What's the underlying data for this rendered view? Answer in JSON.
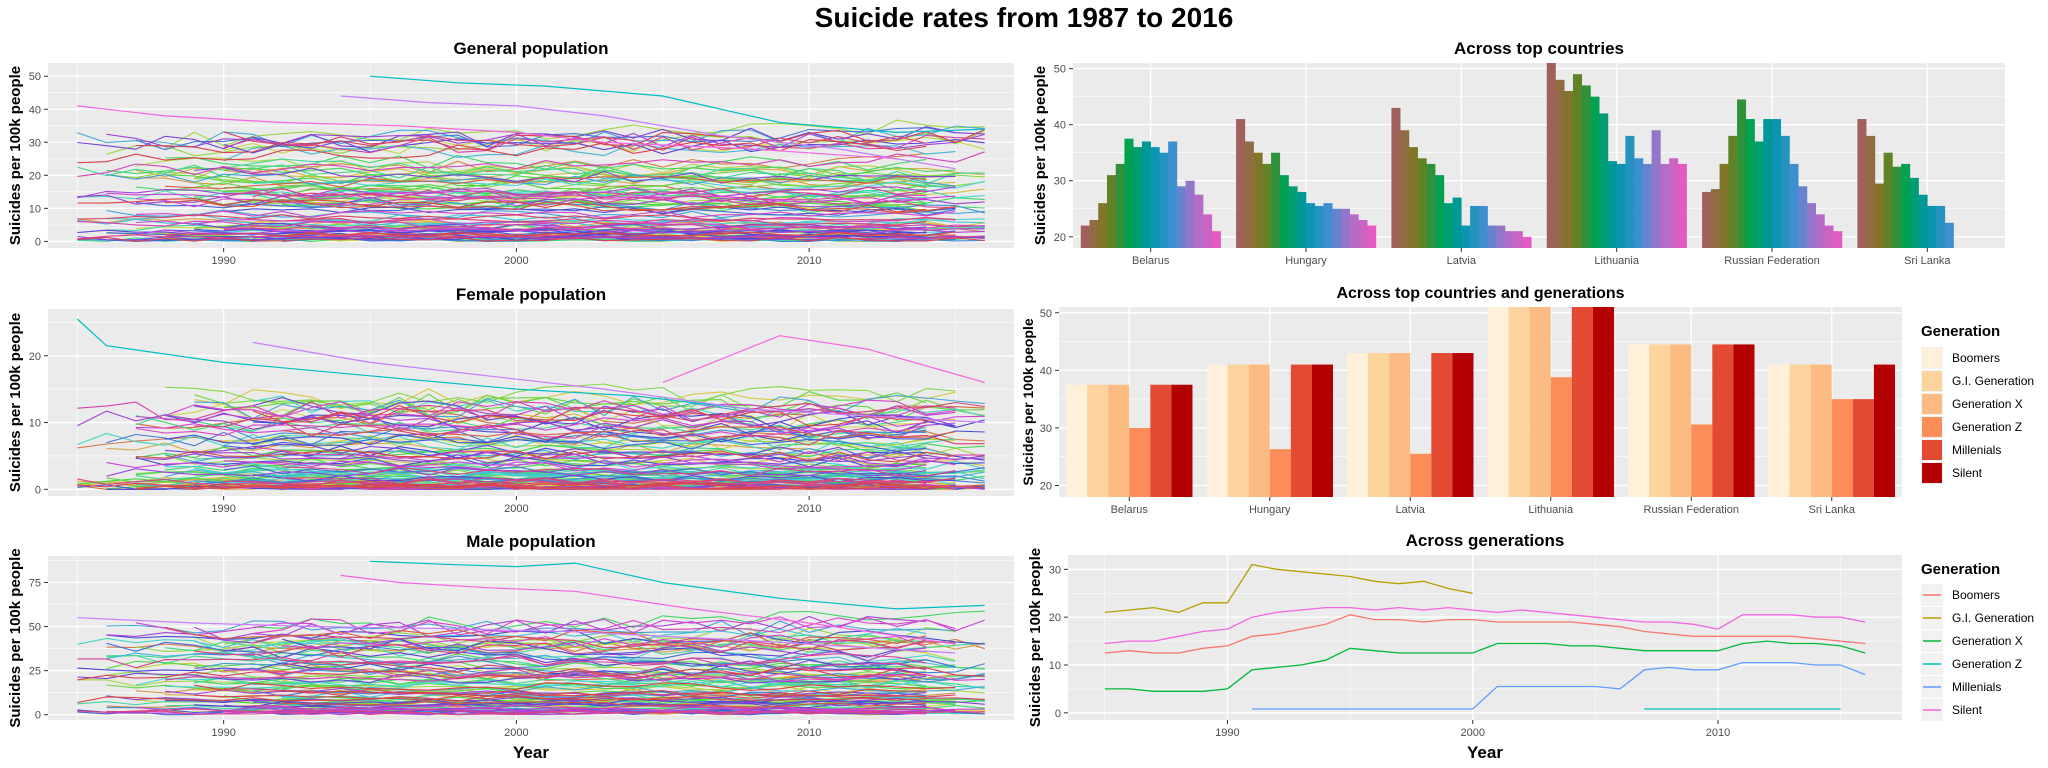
{
  "title": "Suicide rates from 1987 to 2016",
  "colors": {
    "panel_bg": "#EBEBEB",
    "grid_major": "#FFFFFF",
    "generation_fill": [
      "#FEF0D9",
      "#FDD49E",
      "#FDBB84",
      "#FC8D59",
      "#E34A33",
      "#B30000"
    ],
    "generation_line": [
      "#F8766D",
      "#B79F00",
      "#00BA38",
      "#00BFC4",
      "#619CFF",
      "#F564E3"
    ],
    "bar_gradient": [
      "#A0615B",
      "#7A7A1C",
      "#00A150",
      "#0096A8",
      "#3D8FD0",
      "#A870C8",
      "#E35AC0"
    ]
  },
  "chart_data": [
    {
      "id": "general",
      "type": "line",
      "title": "General population",
      "xlabel": "",
      "ylabel": "Suicides per 100k people",
      "xlim": [
        1984,
        2017
      ],
      "ylim": [
        -2,
        54
      ],
      "xticks": [
        1990,
        2000,
        2010
      ],
      "yticks": [
        0,
        10,
        20,
        30,
        40,
        50
      ],
      "series_count": 101,
      "highlight_series": [
        {
          "x": [
            1995,
            1998,
            2001,
            2005,
            2009,
            2013,
            2016
          ],
          "values": [
            50,
            48,
            47,
            44,
            36,
            33,
            34
          ]
        },
        {
          "x": [
            1985,
            1988,
            1992,
            1996,
            2000,
            2003,
            2008,
            2013
          ],
          "values": [
            41,
            38,
            36,
            35,
            33,
            30,
            28,
            25
          ]
        },
        {
          "x": [
            1994,
            1997,
            2000,
            2003,
            2007,
            2011,
            2015
          ],
          "values": [
            44,
            42,
            41,
            38,
            32,
            28,
            22
          ]
        }
      ]
    },
    {
      "id": "female",
      "type": "line",
      "title": "Female population",
      "xlabel": "",
      "ylabel": "Suicides per 100k people",
      "xlim": [
        1984,
        2017
      ],
      "ylim": [
        -1,
        27
      ],
      "xticks": [
        1990,
        2000,
        2010
      ],
      "yticks": [
        0,
        10,
        20
      ],
      "series_count": 101,
      "highlight_series": [
        {
          "x": [
            1985,
            1986,
            1990,
            1995,
            2000,
            2004,
            2008
          ],
          "values": [
            25.5,
            21.5,
            19,
            17,
            15,
            14,
            12
          ]
        },
        {
          "x": [
            2005,
            2009,
            2012,
            2016
          ],
          "values": [
            16,
            23,
            21,
            16
          ]
        },
        {
          "x": [
            1991,
            1995,
            1999,
            2003,
            2008,
            2016
          ],
          "values": [
            22,
            19,
            17,
            15,
            12,
            10
          ]
        }
      ]
    },
    {
      "id": "male",
      "type": "line",
      "title": "Male population",
      "xlabel": "Year",
      "ylabel": "Suicides per 100k people",
      "xlim": [
        1984,
        2017
      ],
      "ylim": [
        -3,
        90
      ],
      "xticks": [
        1990,
        2000,
        2010
      ],
      "yticks": [
        0,
        25,
        50,
        75
      ],
      "series_count": 101,
      "highlight_series": [
        {
          "x": [
            1995,
            1998,
            2000,
            2002,
            2005,
            2009,
            2013,
            2016
          ],
          "values": [
            87,
            85,
            84,
            86,
            75,
            66,
            60,
            62
          ]
        },
        {
          "x": [
            1994,
            1996,
            1999,
            2002,
            2006,
            2010,
            2015
          ],
          "values": [
            79,
            75,
            72,
            70,
            60,
            52,
            40
          ]
        },
        {
          "x": [
            1985,
            1989,
            1993,
            1997,
            2002,
            2008,
            2015
          ],
          "values": [
            55,
            52,
            50,
            49,
            47,
            42,
            35
          ]
        }
      ]
    },
    {
      "id": "top_countries",
      "type": "bar",
      "title": "Across top countries",
      "xlabel": "",
      "ylabel": "Suicides per 100k people",
      "ylim": [
        18,
        51
      ],
      "yticks": [
        20,
        30,
        40,
        50
      ],
      "categories": [
        "Belarus",
        "Hungary",
        "Latvia",
        "Lithuania",
        "Russian Federation",
        "Sri Lanka"
      ],
      "values": [
        [
          22,
          23,
          26,
          31,
          33,
          37.5,
          36,
          37,
          36,
          35,
          37,
          29,
          30,
          27.5,
          24,
          21
        ],
        [
          41,
          37,
          35,
          33,
          35,
          31,
          29,
          28,
          26,
          25.5,
          26,
          25,
          25,
          24,
          23,
          22
        ],
        [
          43,
          39,
          36,
          34,
          33,
          31,
          26,
          27,
          22,
          25.5,
          25.5,
          22,
          22,
          21,
          21,
          20
        ],
        [
          51,
          48,
          46,
          49,
          47,
          45,
          42,
          33.5,
          33,
          38,
          34,
          33,
          39,
          33,
          34,
          33
        ],
        [
          28,
          28.5,
          33,
          38,
          44.5,
          41,
          37,
          41,
          41,
          38,
          33,
          29,
          26,
          24,
          22,
          21
        ],
        [
          41,
          38,
          29.5,
          35,
          32.5,
          33,
          30.5,
          27.5,
          25.5,
          25.5,
          22.5
        ]
      ]
    },
    {
      "id": "top_countries_generations",
      "type": "bar",
      "title": "Across top countries and generations",
      "xlabel": "",
      "ylabel": "Suicides per 100k people",
      "ylim": [
        18,
        51
      ],
      "yticks": [
        20,
        30,
        40,
        50
      ],
      "categories": [
        "Belarus",
        "Hungary",
        "Latvia",
        "Lithuania",
        "Russian Federation",
        "Sri Lanka"
      ],
      "legend_title": "Generation",
      "legend_position": "right",
      "series": [
        {
          "name": "Boomers",
          "values": [
            37.5,
            41,
            43,
            51.2,
            44.5,
            41
          ]
        },
        {
          "name": "G.I. Generation",
          "values": [
            37.5,
            41,
            43,
            51.2,
            44.5,
            41
          ]
        },
        {
          "name": "Generation X",
          "values": [
            37.5,
            41,
            43,
            51.2,
            44.5,
            41
          ]
        },
        {
          "name": "Generation Z",
          "values": [
            30,
            26.3,
            25.5,
            38.8,
            30.6,
            35
          ]
        },
        {
          "name": "Millenials",
          "values": [
            37.5,
            41,
            43,
            51.2,
            44.5,
            35
          ]
        },
        {
          "name": "Silent",
          "values": [
            37.5,
            41,
            43,
            51.2,
            44.5,
            41
          ]
        }
      ]
    },
    {
      "id": "generations",
      "type": "line",
      "title": "Across generations",
      "xlabel": "Year",
      "ylabel": "Suicides per 100k people",
      "xlim": [
        1983.5,
        2017.5
      ],
      "ylim": [
        -1.5,
        33
      ],
      "xticks": [
        1990,
        2000,
        2010
      ],
      "yticks": [
        0,
        10,
        20,
        30
      ],
      "legend_title": "Generation",
      "legend_position": "right",
      "series": [
        {
          "name": "Boomers",
          "x": [
            1985,
            1986,
            1987,
            1988,
            1989,
            1990,
            1991,
            1992,
            1993,
            1994,
            1995,
            1996,
            1997,
            1998,
            1999,
            2000,
            2001,
            2002,
            2003,
            2004,
            2005,
            2006,
            2007,
            2008,
            2009,
            2010,
            2011,
            2012,
            2013,
            2014,
            2015,
            2016
          ],
          "values": [
            12.5,
            13,
            12.5,
            12.5,
            13.5,
            14,
            16,
            16.5,
            17.5,
            18.5,
            20.5,
            19.5,
            19.5,
            19,
            19.5,
            19.5,
            19,
            19,
            19,
            19,
            18.5,
            18,
            17,
            16.5,
            16,
            16,
            16,
            16,
            16,
            15.5,
            15,
            14.5
          ]
        },
        {
          "name": "G.I. Generation",
          "x": [
            1985,
            1986,
            1987,
            1988,
            1989,
            1990,
            1991,
            1992,
            1993,
            1994,
            1995,
            1996,
            1997,
            1998,
            1999,
            2000
          ],
          "values": [
            21,
            21.5,
            22,
            21,
            23,
            23,
            31,
            30,
            29.5,
            29,
            28.5,
            27.5,
            27,
            27.5,
            26,
            25
          ]
        },
        {
          "name": "Generation X",
          "x": [
            1985,
            1986,
            1987,
            1988,
            1989,
            1990,
            1991,
            1992,
            1993,
            1994,
            1995,
            1996,
            1997,
            1998,
            1999,
            2000,
            2001,
            2002,
            2003,
            2004,
            2005,
            2006,
            2007,
            2008,
            2009,
            2010,
            2011,
            2012,
            2013,
            2014,
            2015,
            2016
          ],
          "values": [
            5,
            5,
            4.5,
            4.5,
            4.5,
            5,
            9,
            9.5,
            10,
            11,
            13.5,
            13,
            12.5,
            12.5,
            12.5,
            12.5,
            14.5,
            14.5,
            14.5,
            14,
            14,
            13.5,
            13,
            13,
            13,
            13,
            14.5,
            15,
            14.5,
            14.5,
            14,
            12.5
          ]
        },
        {
          "name": "Generation Z",
          "x": [
            2007,
            2008,
            2009,
            2010,
            2011,
            2012,
            2013,
            2014,
            2015
          ],
          "values": [
            0.8,
            0.8,
            0.8,
            0.8,
            0.8,
            0.8,
            0.8,
            0.8,
            0.8
          ]
        },
        {
          "name": "Millenials",
          "x": [
            1991,
            1993,
            1995,
            1997,
            1999,
            2000,
            2001,
            2003,
            2005,
            2006,
            2007,
            2008,
            2009,
            2010,
            2011,
            2012,
            2013,
            2014,
            2015,
            2016
          ],
          "values": [
            0.8,
            0.8,
            0.8,
            0.8,
            0.8,
            0.8,
            5.5,
            5.5,
            5.5,
            5,
            9,
            9.5,
            9,
            9,
            10.5,
            10.5,
            10.5,
            10,
            10,
            8
          ]
        },
        {
          "name": "Silent",
          "x": [
            1985,
            1986,
            1987,
            1988,
            1989,
            1990,
            1991,
            1992,
            1993,
            1994,
            1995,
            1996,
            1997,
            1998,
            1999,
            2000,
            2001,
            2002,
            2003,
            2004,
            2005,
            2006,
            2007,
            2008,
            2009,
            2010,
            2011,
            2012,
            2013,
            2014,
            2015,
            2016
          ],
          "values": [
            14.5,
            15,
            15,
            16,
            17,
            17.5,
            20,
            21,
            21.5,
            22,
            22,
            21.5,
            22,
            21.5,
            22,
            21.5,
            21,
            21.5,
            21,
            20.5,
            20,
            19.5,
            19,
            19,
            18.5,
            17.5,
            20.5,
            20.5,
            20.5,
            20,
            20,
            19
          ]
        }
      ]
    }
  ]
}
